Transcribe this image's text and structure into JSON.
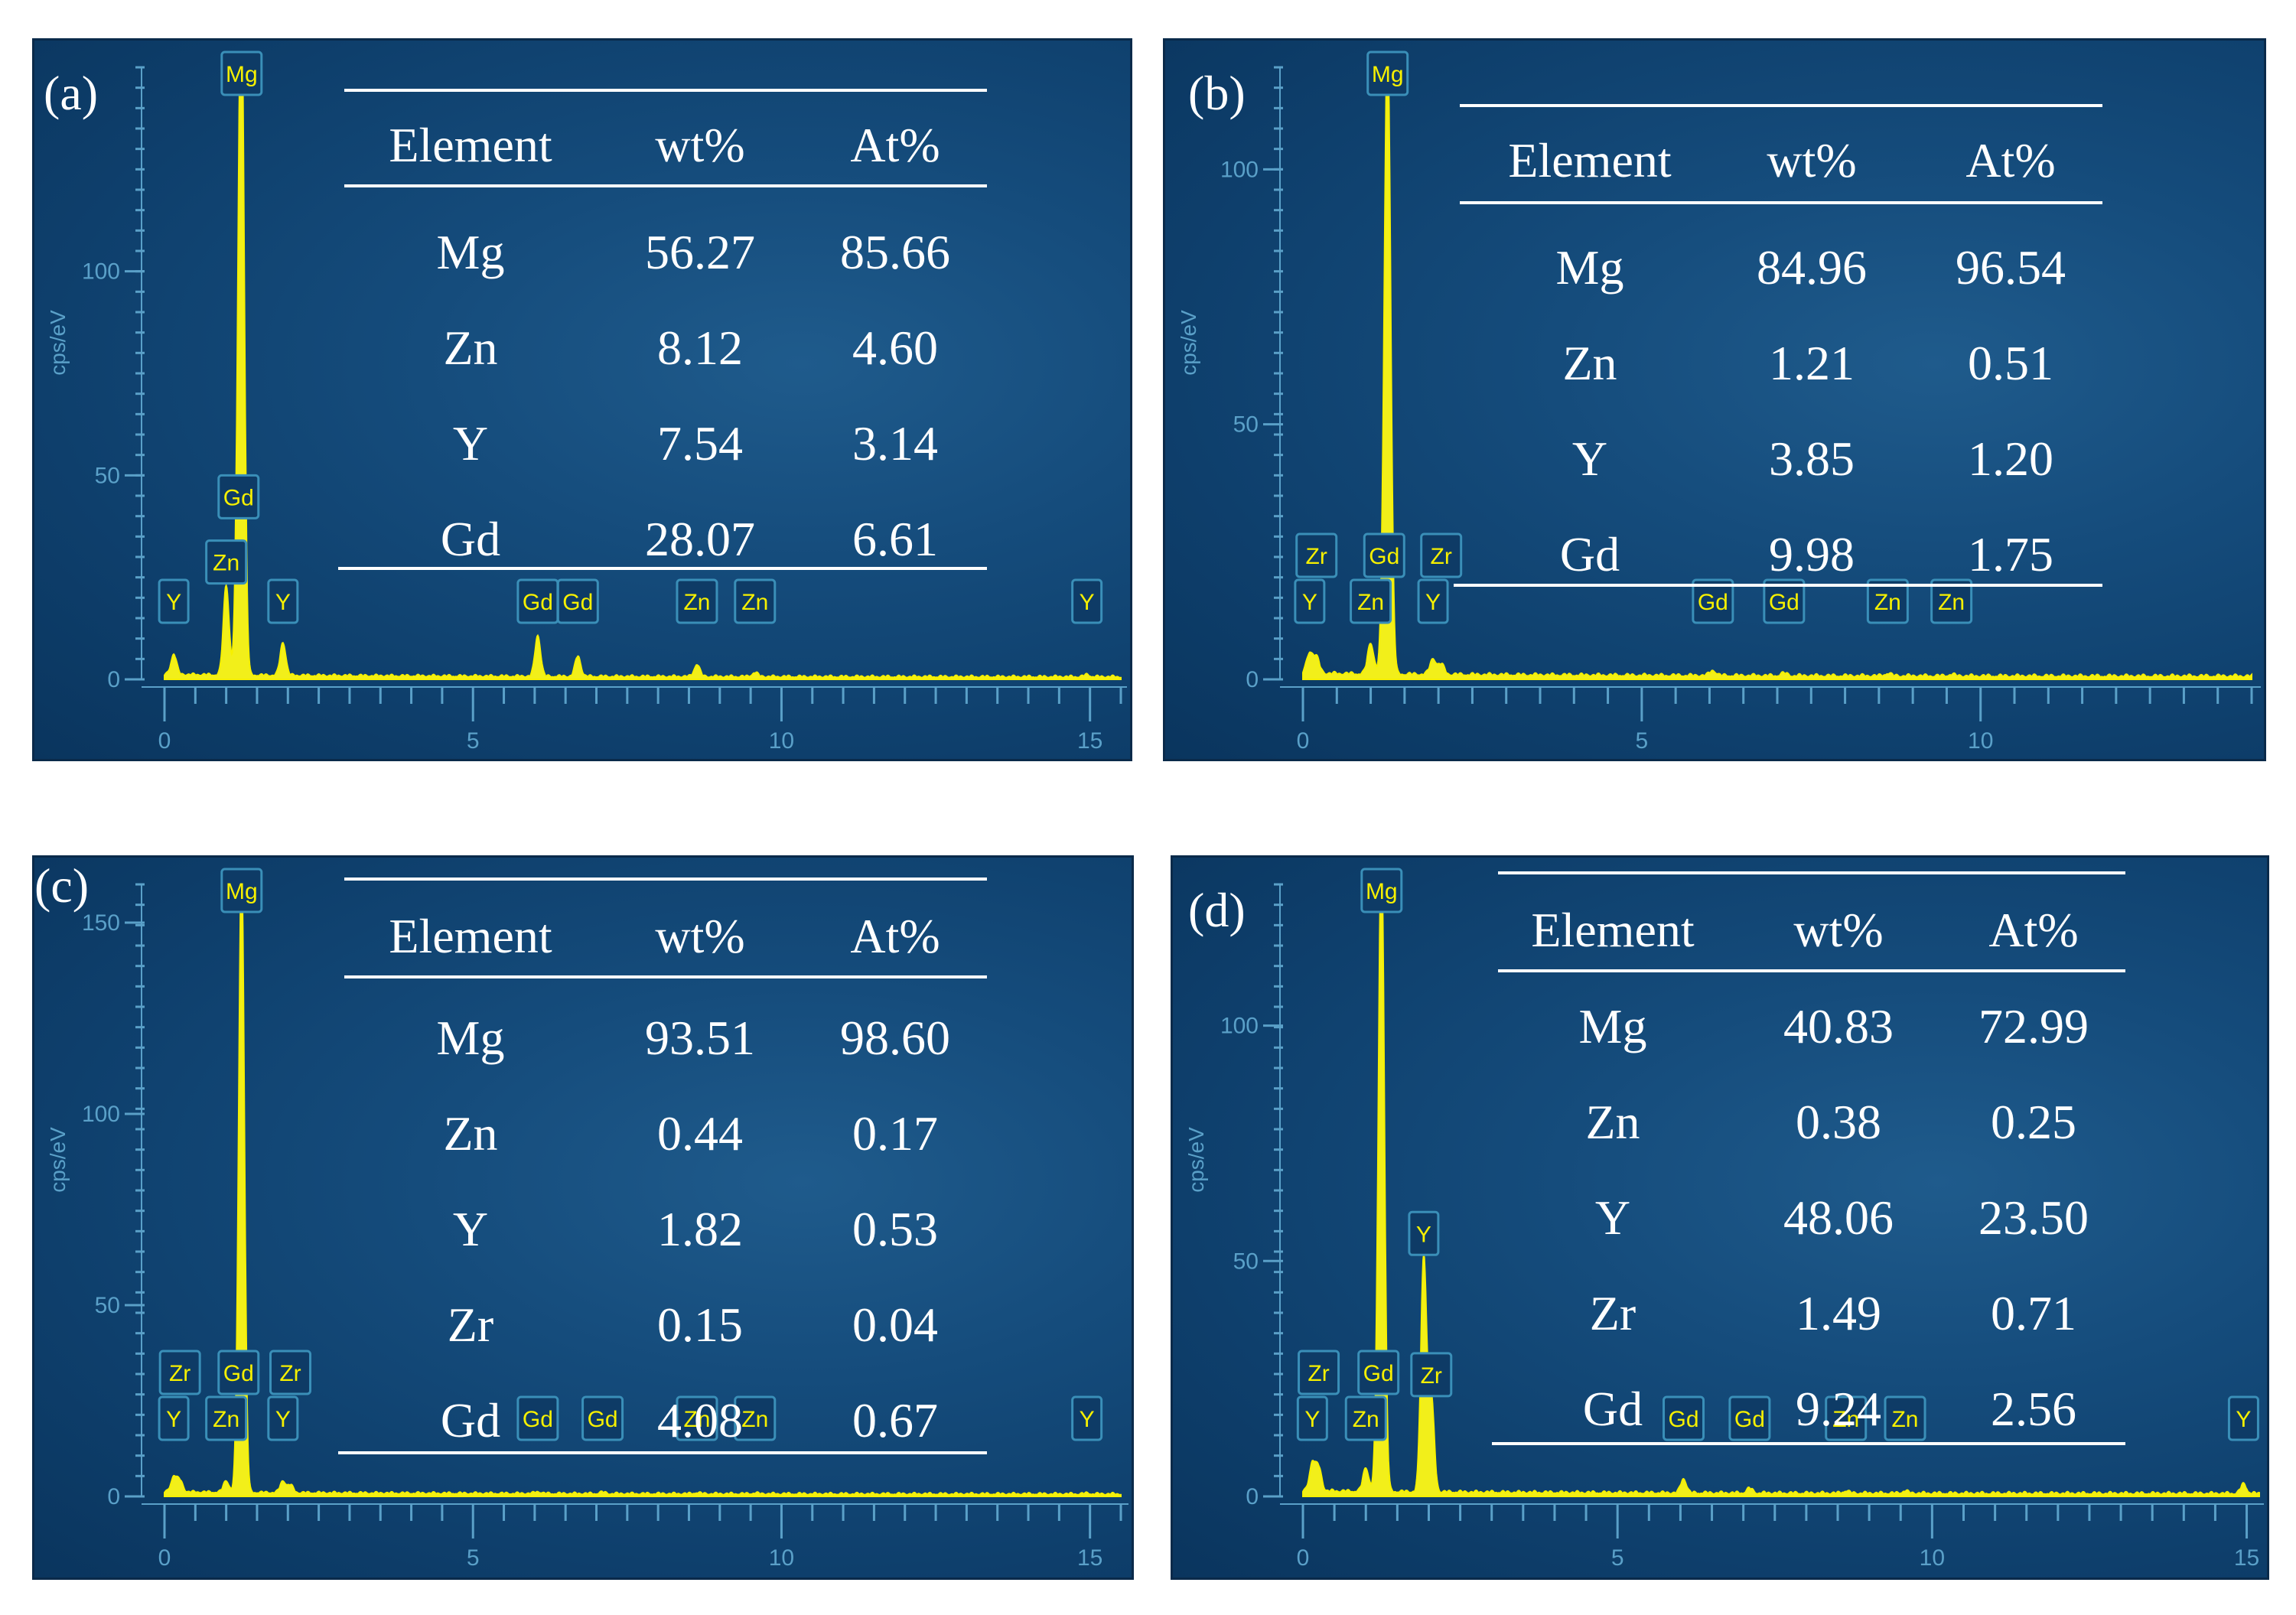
{
  "chart_data": [
    {
      "type": "line",
      "panel_label": "(a)",
      "ylabel": "cps/eV",
      "xlim": [
        0,
        15.5
      ],
      "ylim": [
        0,
        150
      ],
      "x_ticks": [
        0,
        5,
        10,
        15
      ],
      "y_ticks": [
        0,
        50,
        100
      ],
      "peaks": [
        {
          "label": "Y",
          "x": 0.15,
          "h": 5
        },
        {
          "label": "Zn",
          "x": 1.0,
          "h": 22
        },
        {
          "label": "Gd",
          "x": 1.2,
          "h": 38
        },
        {
          "label": "Mg",
          "x": 1.25,
          "h": 150
        },
        {
          "label": "Y",
          "x": 1.92,
          "h": 8
        },
        {
          "label": "Gd",
          "x": 6.05,
          "h": 10
        },
        {
          "label": "Gd",
          "x": 6.7,
          "h": 5
        },
        {
          "label": "Zn",
          "x": 8.63,
          "h": 3
        },
        {
          "label": "Zn",
          "x": 9.57,
          "h": 1
        },
        {
          "label": "Y",
          "x": 14.95,
          "h": 0.5
        }
      ],
      "table": {
        "headers": [
          "Element",
          "wt%",
          "At%"
        ],
        "rows": [
          [
            "Mg",
            "56.27",
            "85.66"
          ],
          [
            "Zn",
            "8.12",
            "4.60"
          ],
          [
            "Y",
            "7.54",
            "3.14"
          ],
          [
            "Gd",
            "28.07",
            "6.61"
          ]
        ]
      }
    },
    {
      "type": "line",
      "panel_label": "(b)",
      "ylabel": "cps/eV",
      "xlim": [
        0,
        14
      ],
      "ylim": [
        0,
        120
      ],
      "x_ticks": [
        0,
        5,
        10
      ],
      "y_ticks": [
        0,
        50,
        100
      ],
      "peaks": [
        {
          "label": "Y",
          "x": 0.1,
          "h": 4
        },
        {
          "label": "Zr",
          "x": 0.2,
          "h": 3
        },
        {
          "label": "Zn",
          "x": 1.0,
          "h": 6
        },
        {
          "label": "Gd",
          "x": 1.2,
          "h": 10
        },
        {
          "label": "Mg",
          "x": 1.25,
          "h": 120
        },
        {
          "label": "Y",
          "x": 1.92,
          "h": 3
        },
        {
          "label": "Zr",
          "x": 2.04,
          "h": 2
        },
        {
          "label": "Gd",
          "x": 6.05,
          "h": 1
        },
        {
          "label": "Gd",
          "x": 7.1,
          "h": 0.5
        },
        {
          "label": "Zn",
          "x": 8.63,
          "h": 0.5
        },
        {
          "label": "Zn",
          "x": 9.57,
          "h": 0.3
        }
      ],
      "table": {
        "headers": [
          "Element",
          "wt%",
          "At%"
        ],
        "rows": [
          [
            "Mg",
            "84.96",
            "96.54"
          ],
          [
            "Zn",
            "1.21",
            "0.51"
          ],
          [
            "Y",
            "3.85",
            "1.20"
          ],
          [
            "Gd",
            "9.98",
            "1.75"
          ]
        ]
      }
    },
    {
      "type": "line",
      "panel_label": "(c)",
      "ylabel": "cps/eV",
      "xlim": [
        0,
        15.5
      ],
      "ylim": [
        0,
        160
      ],
      "x_ticks": [
        0,
        5,
        10,
        15
      ],
      "y_ticks": [
        0,
        50,
        100,
        150
      ],
      "peaks": [
        {
          "label": "Y",
          "x": 0.15,
          "h": 4
        },
        {
          "label": "Zr",
          "x": 0.25,
          "h": 3
        },
        {
          "label": "Zn",
          "x": 1.0,
          "h": 3
        },
        {
          "label": "Gd",
          "x": 1.2,
          "h": 8
        },
        {
          "label": "Mg",
          "x": 1.25,
          "h": 160
        },
        {
          "label": "Y",
          "x": 1.92,
          "h": 3
        },
        {
          "label": "Zr",
          "x": 2.04,
          "h": 2
        },
        {
          "label": "Gd",
          "x": 6.05,
          "h": 0.5
        },
        {
          "label": "Gd",
          "x": 7.1,
          "h": 0.4
        },
        {
          "label": "Zn",
          "x": 8.63,
          "h": 0.3
        },
        {
          "label": "Zn",
          "x": 9.57,
          "h": 0.2
        },
        {
          "label": "Y",
          "x": 14.95,
          "h": 0.2
        }
      ],
      "table": {
        "headers": [
          "Element",
          "wt%",
          "At%"
        ],
        "rows": [
          [
            "Mg",
            "93.51",
            "98.60"
          ],
          [
            "Zn",
            "0.44",
            "0.17"
          ],
          [
            "Y",
            "1.82",
            "0.53"
          ],
          [
            "Zr",
            "0.15",
            "0.04"
          ],
          [
            "Gd",
            "4.08",
            "0.67"
          ]
        ]
      }
    },
    {
      "type": "line",
      "panel_label": "(d)",
      "ylabel": "cps/eV",
      "xlim": [
        0,
        15.2
      ],
      "ylim": [
        0,
        130
      ],
      "x_ticks": [
        0,
        5,
        10,
        15
      ],
      "y_ticks": [
        0,
        50,
        100
      ],
      "peaks": [
        {
          "label": "Y",
          "x": 0.15,
          "h": 6
        },
        {
          "label": "Zr",
          "x": 0.25,
          "h": 5
        },
        {
          "label": "Zn",
          "x": 1.0,
          "h": 5
        },
        {
          "label": "Gd",
          "x": 1.2,
          "h": 15
        },
        {
          "label": "Mg",
          "x": 1.25,
          "h": 130
        },
        {
          "label": "Y",
          "x": 1.92,
          "h": 50
        },
        {
          "label": "Zr",
          "x": 2.04,
          "h": 20
        },
        {
          "label": "Gd",
          "x": 6.05,
          "h": 3
        },
        {
          "label": "Gd",
          "x": 7.1,
          "h": 1
        },
        {
          "label": "Zn",
          "x": 8.63,
          "h": 0.5
        },
        {
          "label": "Zn",
          "x": 9.57,
          "h": 0.5
        },
        {
          "label": "Y",
          "x": 14.95,
          "h": 2
        }
      ],
      "table": {
        "headers": [
          "Element",
          "wt%",
          "At%"
        ],
        "rows": [
          [
            "Mg",
            "40.83",
            "72.99"
          ],
          [
            "Zn",
            "0.38",
            "0.25"
          ],
          [
            "Y",
            "48.06",
            "23.50"
          ],
          [
            "Zr",
            "1.49",
            "0.71"
          ],
          [
            "Gd",
            "9.24",
            "2.56"
          ]
        ]
      }
    }
  ]
}
